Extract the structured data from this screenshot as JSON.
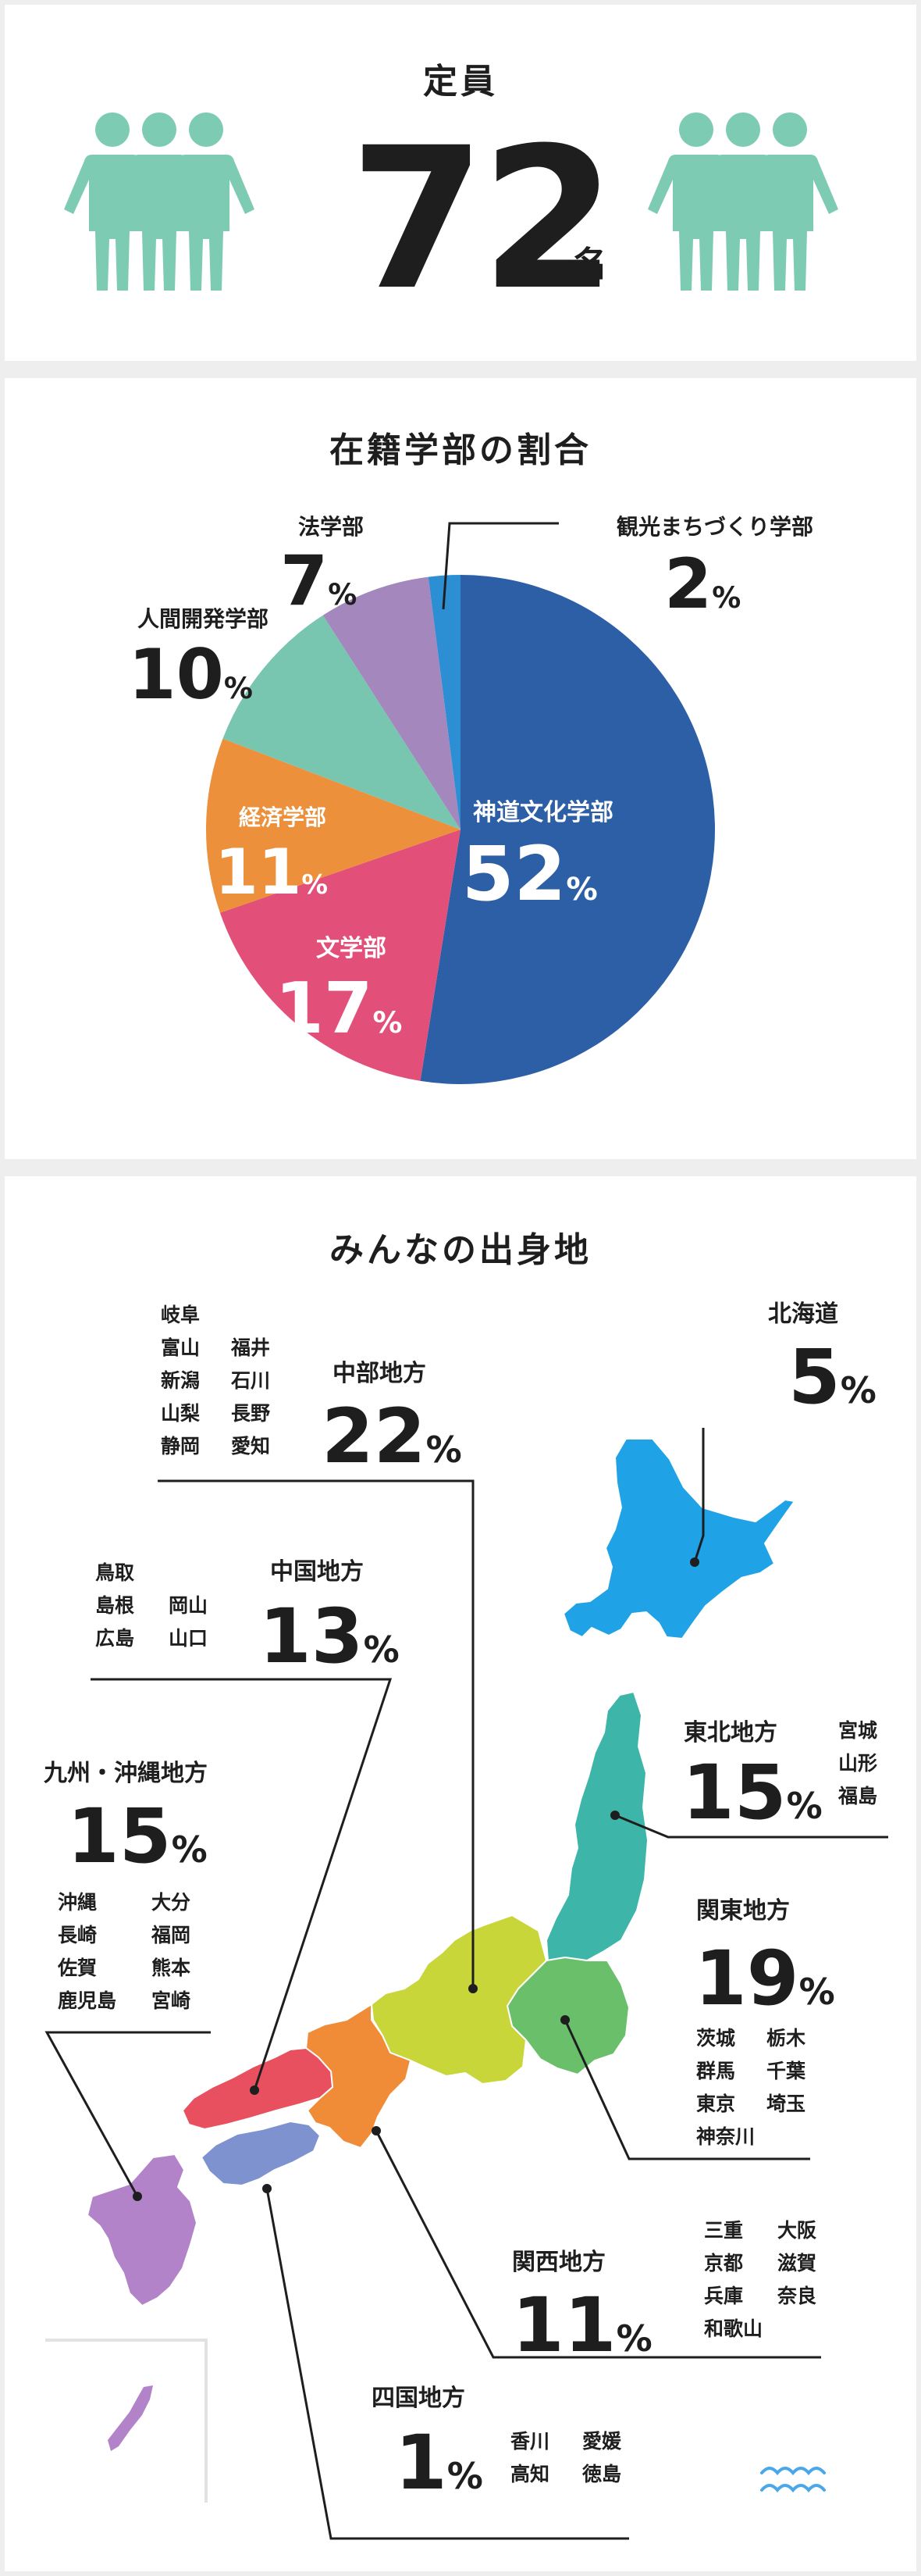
{
  "capacity": {
    "title": "定員",
    "value": "72",
    "unit": "名",
    "icon_color": "#7ecbb3"
  },
  "faculty": {
    "title": "在籍学部の割合",
    "percent_unit": "%"
  },
  "chart_data": [
    {
      "type": "pie",
      "title": "在籍学部の割合",
      "unit": "%",
      "slices": [
        {
          "label": "神道文化学部",
          "value": 52,
          "color": "#2c5fa6"
        },
        {
          "label": "文学部",
          "value": 17,
          "color": "#e2507a"
        },
        {
          "label": "経済学部",
          "value": 11,
          "color": "#ec903b"
        },
        {
          "label": "人間開発学部",
          "value": 10,
          "color": "#79c6b0"
        },
        {
          "label": "法学部",
          "value": 7,
          "color": "#a387bd"
        },
        {
          "label": "観光まちづくり学部",
          "value": 2,
          "color": "#2c8fd3"
        }
      ]
    },
    {
      "type": "table",
      "title": "みんなの出身地",
      "unit": "%",
      "regions": [
        {
          "name": "北海道",
          "value": 5,
          "color": "#1fa2e6",
          "prefectures": []
        },
        {
          "name": "東北地方",
          "value": 15,
          "color": "#3db5a8",
          "prefectures": [
            "宮城",
            "山形",
            "福島"
          ]
        },
        {
          "name": "関東地方",
          "value": 19,
          "color": "#6abf6a",
          "prefectures": [
            "茨城",
            "栃木",
            "群馬",
            "千葉",
            "東京",
            "埼玉",
            "神奈川"
          ]
        },
        {
          "name": "中部地方",
          "value": 22,
          "color": "#c9d63a",
          "prefectures": [
            "岐阜",
            "富山",
            "福井",
            "新潟",
            "石川",
            "山梨",
            "長野",
            "静岡",
            "愛知"
          ]
        },
        {
          "name": "関西地方",
          "value": 11,
          "color": "#f08c38",
          "prefectures": [
            "三重",
            "大阪",
            "京都",
            "滋賀",
            "兵庫",
            "奈良",
            "和歌山"
          ]
        },
        {
          "name": "中国地方",
          "value": 13,
          "color": "#e8505f",
          "prefectures": [
            "鳥取",
            "島根",
            "岡山",
            "広島",
            "山口"
          ]
        },
        {
          "name": "四国地方",
          "value": 1,
          "color": "#7e92cf",
          "prefectures": [
            "香川",
            "愛媛",
            "高知",
            "徳島"
          ]
        },
        {
          "name": "九州・沖縄地方",
          "value": 15,
          "color": "#b283c8",
          "prefectures": [
            "沖縄",
            "大分",
            "長崎",
            "福岡",
            "佐賀",
            "熊本",
            "鹿児島",
            "宮崎"
          ]
        }
      ]
    }
  ],
  "origin": {
    "title": "みんなの出身地",
    "percent_unit": "%"
  }
}
